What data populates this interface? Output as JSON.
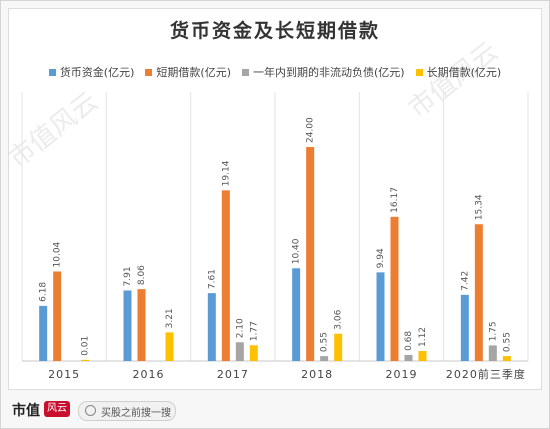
{
  "chart_data": {
    "type": "bar",
    "title": "货币资金及长短期借款",
    "categories": [
      "2015",
      "2016",
      "2017",
      "2018",
      "2019",
      "2020前三季度"
    ],
    "series": [
      {
        "name": "货币资金(亿元)",
        "color": "#5B9BD5",
        "values": [
          6.18,
          7.91,
          7.61,
          10.4,
          9.94,
          7.42
        ],
        "labels": [
          "6.18",
          "7.91",
          "7.61",
          "10.40",
          "9.94",
          "7.42"
        ]
      },
      {
        "name": "短期借款(亿元)",
        "color": "#ED7D31",
        "values": [
          10.04,
          8.06,
          19.14,
          24.0,
          16.17,
          15.34
        ],
        "labels": [
          "10.04",
          "8.06",
          "19.14",
          "24.00",
          "16.17",
          "15.34"
        ]
      },
      {
        "name": "一年内到期的非流动负债(亿元)",
        "color": "#A5A5A5",
        "values": [
          0,
          0,
          2.1,
          0.55,
          0.68,
          1.75
        ],
        "labels": [
          "",
          "",
          "2.10",
          "0.55",
          "0.68",
          "1.75"
        ]
      },
      {
        "name": "长期借款(亿元)",
        "color": "#FFC000",
        "values": [
          0.01,
          3.21,
          1.77,
          3.06,
          1.12,
          0.55
        ],
        "labels": [
          "0.01",
          "3.21",
          "1.77",
          "3.06",
          "1.12",
          "0.55"
        ]
      }
    ],
    "ylim": [
      0,
      24
    ],
    "grid": true,
    "legend_position": "top"
  },
  "footer": {
    "brand": "市值",
    "brand_badge": "风云",
    "prompt_text": "买股之前搜一搜"
  },
  "watermark": {
    "text_a": "市值风云",
    "text_b": "市值风云"
  }
}
